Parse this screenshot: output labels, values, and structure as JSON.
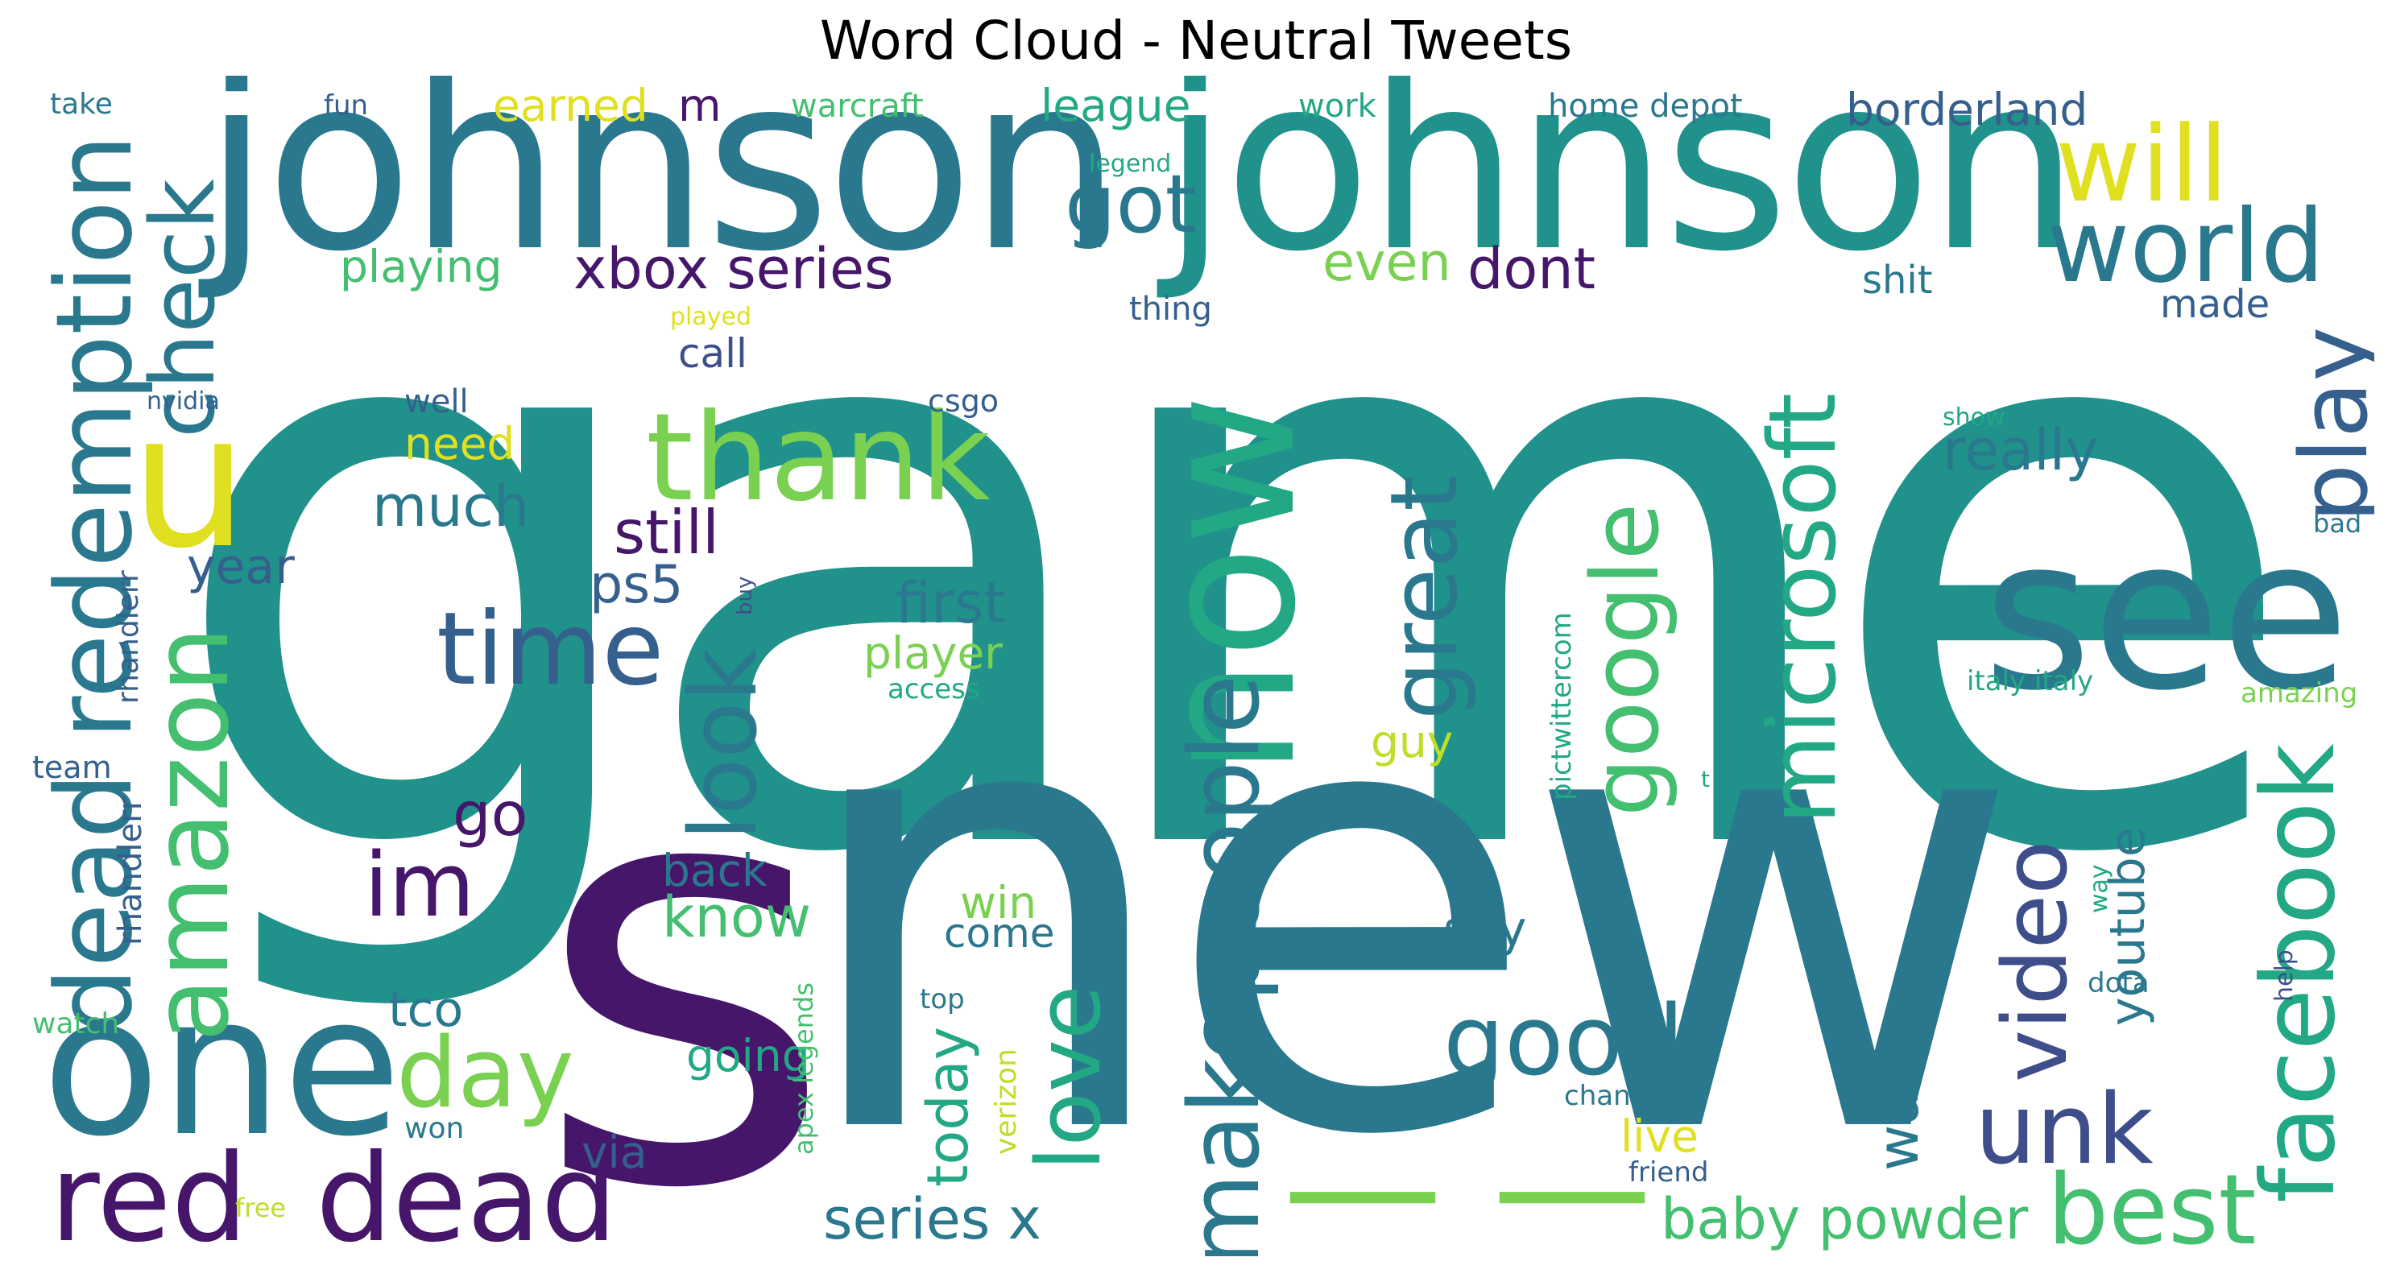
{
  "title": "Word Cloud - Neutral Tweets",
  "words": {
    "game": "game",
    "new": "new",
    "s": "s",
    "johnson_a": "johnson",
    "johnson_b": "johnson",
    "one": "one",
    "now": "now",
    "see": "see",
    "u": "u",
    "thank": "thank",
    "red_dead_redemption": "dead redemption",
    "red": "red",
    "dead": "dead",
    "amazon": "amazon",
    "check": "check",
    "time": "time",
    "facebook": "facebook",
    "microsoft": "microsoft",
    "google": "google",
    "great": "great",
    "love": "love",
    "make_people": "makepeople",
    "look": "look",
    "good": "good",
    "best": "best",
    "unk": "unk",
    "video": "video",
    "play": "play",
    "world": "world",
    "will": "will",
    "got": "got",
    "im": "im",
    "day": "day",
    "xbox_series": "xbox series",
    "series_x": "series x",
    "baby_powder": "baby powder",
    "really": "really",
    "first": "first",
    "still": "still",
    "much": "much",
    "ps5": "ps5",
    "year": "year",
    "even": "even",
    "dont": "dont",
    "league": "league",
    "borderland": "borderland",
    "earned": "earned",
    "warcraft": "warcraft",
    "home_depot": "home depot",
    "playing": "playing",
    "call": "call",
    "need": "need",
    "well": "well",
    "player": "player",
    "go": "go",
    "know": "know",
    "back": "back",
    "say": "say",
    "guy": "guy",
    "tco": "tco",
    "going": "going",
    "win": "win",
    "come": "come",
    "today": "today",
    "want": "want",
    "live": "live",
    "via": "via",
    "youtube": "youtube",
    "shit": "shit",
    "made": "made",
    "thing": "thing",
    "played": "played",
    "nvidia": "nvidia",
    "csgo": "csgo",
    "show": "show",
    "bad": "bad",
    "italy_italy": "italy italy",
    "amazing": "amazing",
    "access": "access",
    "team": "team",
    "rhandlerr_a": "rhandlerr",
    "rhandlerr_b": "rhandlerr",
    "buy": "buy",
    "pictwittercom": "pictwittercom",
    "watch": "watch",
    "free": "free",
    "won": "won",
    "top": "top",
    "verizon": "verizon",
    "apex_legends": "apex legends",
    "chance": "chance",
    "friend": "friend",
    "dota": "dota",
    "help": "help",
    "way": "way",
    "take": "take",
    "fun": "fun",
    "m": "m",
    "work": "work",
    "legend": "legend",
    "t": "t",
    "dash_a": "—",
    "dash_b": "—"
  },
  "palette": {
    "dark_purple": "#46166b",
    "indigo": "#3d4e8a",
    "slate_blue": "#355f8d",
    "blue_teal": "#2a788e",
    "teal": "#21918c",
    "green_teal": "#22a884",
    "green": "#44bf70",
    "light_green": "#7ad151",
    "yellow_green": "#bddf26",
    "yellow": "#e0e020"
  }
}
